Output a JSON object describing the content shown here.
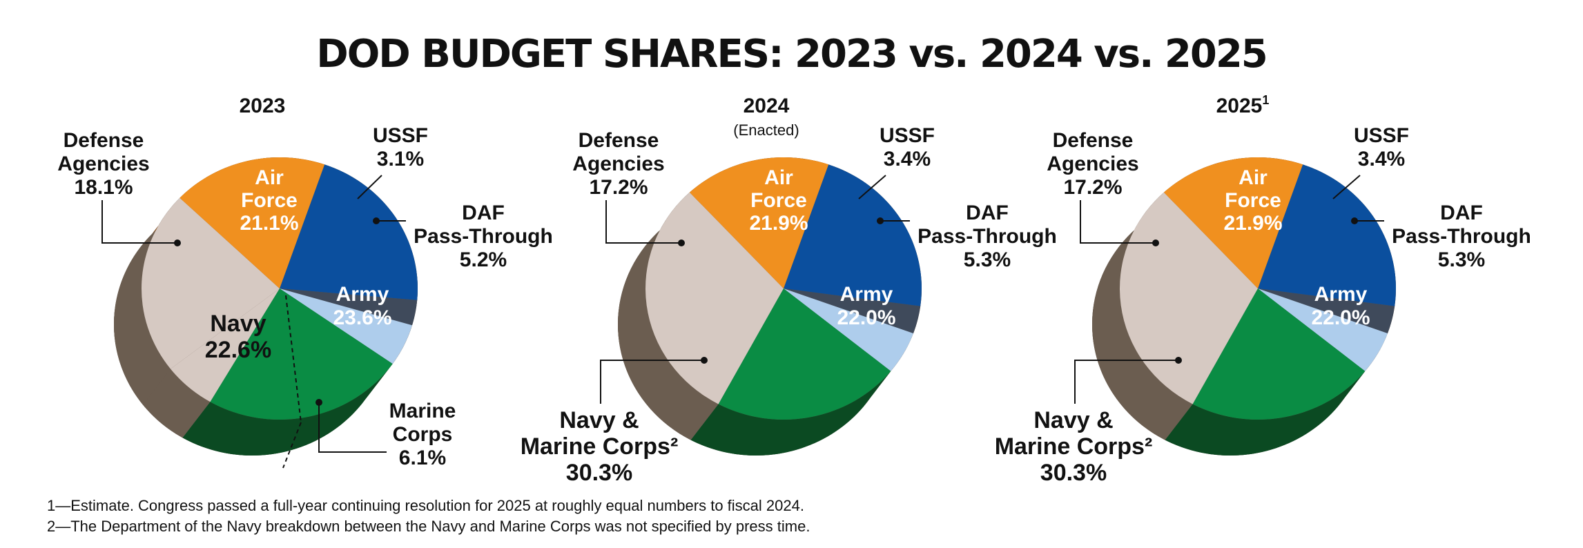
{
  "chart_data": {
    "title": "DOD BUDGET SHARES: 2023 vs. 2024 vs. 2025",
    "charts": [
      {
        "type": "pie",
        "title": "2023",
        "title_sup": "",
        "subtitle": "",
        "slices": [
          {
            "name": "Air Force",
            "value": 21.1,
            "label": "21.1%",
            "color": "#0b4f9e"
          },
          {
            "name": "USSF",
            "value": 3.1,
            "label": "3.1%",
            "color": "#3f4a5b"
          },
          {
            "name": "DAF Pass-Through",
            "value": 5.2,
            "label": "5.2%",
            "color": "#aecdec"
          },
          {
            "name": "Army",
            "value": 23.6,
            "label": "23.6%",
            "color": "#0a8c44"
          },
          {
            "name": "Marine Corps",
            "value": 6.1,
            "label": "6.1%",
            "color": "#d6c9c2"
          },
          {
            "name": "Navy",
            "value": 22.6,
            "label": "22.6%",
            "color": "#d6c9c2"
          },
          {
            "name": "Defense Agencies",
            "value": 18.1,
            "label": "18.1%",
            "color": "#f0901f"
          }
        ],
        "labels": {
          "air_force": [
            "Air",
            "Force",
            "21.1%"
          ],
          "ussf": [
            "USSF",
            "3.1%"
          ],
          "daf": [
            "DAF",
            "Pass-Through",
            "5.2%"
          ],
          "army": [
            "Army",
            "23.6%"
          ],
          "navy": [
            "Navy",
            "22.6%"
          ],
          "marine": [
            "Marine",
            "Corps",
            "6.1%"
          ],
          "defense": [
            "Defense",
            "Agencies",
            "18.1%"
          ]
        }
      },
      {
        "type": "pie",
        "title": "2024",
        "title_sup": "",
        "subtitle": "(Enacted)",
        "slices": [
          {
            "name": "Air Force",
            "value": 21.9,
            "label": "21.9%",
            "color": "#0b4f9e"
          },
          {
            "name": "USSF",
            "value": 3.4,
            "label": "3.4%",
            "color": "#3f4a5b"
          },
          {
            "name": "DAF Pass-Through",
            "value": 5.3,
            "label": "5.3%",
            "color": "#aecdec"
          },
          {
            "name": "Army",
            "value": 22.0,
            "label": "22.0%",
            "color": "#0a8c44"
          },
          {
            "name": "Navy & Marine Corps",
            "value": 30.3,
            "label": "30.3%",
            "color": "#d6c9c2"
          },
          {
            "name": "Defense Agencies",
            "value": 17.2,
            "label": "17.2%",
            "color": "#f0901f"
          }
        ],
        "labels": {
          "air_force": [
            "Air",
            "Force",
            "21.9%"
          ],
          "ussf": [
            "USSF",
            "3.4%"
          ],
          "daf": [
            "DAF",
            "Pass-Through",
            "5.3%"
          ],
          "army": [
            "Army",
            "22.0%"
          ],
          "navy_marine": [
            "Navy &",
            "Marine Corps²",
            "30.3%"
          ],
          "defense": [
            "Defense",
            "Agencies",
            "17.2%"
          ]
        }
      },
      {
        "type": "pie",
        "title": "2025",
        "title_sup": "1",
        "subtitle": "",
        "slices": [
          {
            "name": "Air Force",
            "value": 21.9,
            "label": "21.9%",
            "color": "#0b4f9e"
          },
          {
            "name": "USSF",
            "value": 3.4,
            "label": "3.4%",
            "color": "#3f4a5b"
          },
          {
            "name": "DAF Pass-Through",
            "value": 5.3,
            "label": "5.3%",
            "color": "#aecdec"
          },
          {
            "name": "Army",
            "value": 22.0,
            "label": "22.0%",
            "color": "#0a8c44"
          },
          {
            "name": "Navy & Marine Corps",
            "value": 30.3,
            "label": "30.3%",
            "color": "#d6c9c2"
          },
          {
            "name": "Defense Agencies",
            "value": 17.2,
            "label": "17.2%",
            "color": "#f0901f"
          }
        ],
        "labels": {
          "air_force": [
            "Air",
            "Force",
            "21.9%"
          ],
          "ussf": [
            "USSF",
            "3.4%"
          ],
          "daf": [
            "DAF",
            "Pass-Through",
            "5.3%"
          ],
          "army": [
            "Army",
            "22.0%"
          ],
          "navy_marine": [
            "Navy &",
            "Marine Corps²",
            "30.3%"
          ],
          "defense": [
            "Defense",
            "Agencies",
            "17.2%"
          ]
        }
      }
    ]
  },
  "footnotes": [
    "1—Estimate. Congress passed a full-year continuing resolution for 2025 at roughly equal numbers to fiscal 2024.",
    "2—The Department of the Navy breakdown between the Navy and Marine Corps was not specified by press time."
  ],
  "colors": {
    "air_force": "#0b4f9e",
    "ussf": "#3f4a5b",
    "daf": "#aecdec",
    "army": "#0a8c44",
    "navy": "#d6c9c2",
    "defense": "#f0901f",
    "side_navy": "#6b5d50",
    "side_defense": "#8a5220",
    "side_army": "#0b4a22"
  }
}
